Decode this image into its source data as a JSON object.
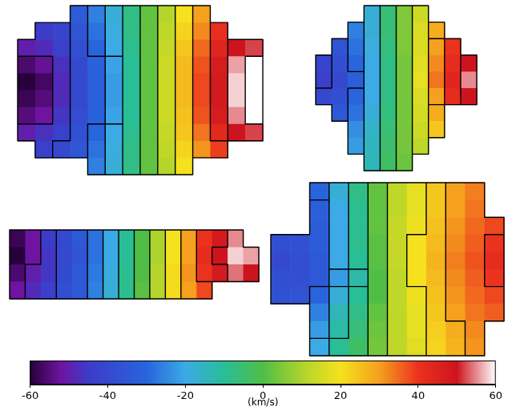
{
  "chart_data": [
    {
      "type": "heatmap",
      "tick_labels": false,
      "cells": [
        [
          null,
          null,
          null,
          -33,
          -26,
          -18,
          -8,
          2,
          11,
          20,
          30,
          null,
          null,
          null
        ],
        [
          null,
          -45,
          -42,
          -36,
          -28,
          -19,
          -8,
          2,
          12,
          22,
          32,
          41,
          null,
          null
        ],
        [
          -50,
          -48,
          -44,
          -38,
          -30,
          -20,
          -9,
          2,
          13,
          24,
          35,
          44,
          50,
          52
        ],
        [
          -56,
          -53,
          -47,
          -40,
          -31,
          -21,
          -10,
          2,
          14,
          26,
          37,
          47,
          56,
          60
        ],
        [
          -60,
          -57,
          -48,
          -40,
          -32,
          -22,
          -10,
          2,
          14,
          26,
          38,
          48,
          58,
          60
        ],
        [
          -58,
          -55,
          -48,
          -40,
          -32,
          -22,
          -10,
          2,
          14,
          26,
          38,
          48,
          58,
          60
        ],
        [
          -55,
          -52,
          -46,
          -39,
          -31,
          -21,
          -10,
          2,
          14,
          25,
          37,
          47,
          55,
          60
        ],
        [
          -50,
          -47,
          -43,
          -37,
          -30,
          -20,
          -9,
          2,
          13,
          24,
          34,
          43,
          50,
          52
        ],
        [
          null,
          -43,
          -40,
          -35,
          -28,
          -19,
          -8,
          2,
          12,
          22,
          31,
          39,
          null,
          null
        ],
        [
          null,
          null,
          null,
          null,
          -26,
          -18,
          -8,
          2,
          11,
          20,
          null,
          null,
          null,
          null
        ]
      ]
    },
    {
      "type": "heatmap",
      "tick_labels": false,
      "cells": [
        [
          null,
          null,
          null,
          -18,
          -6,
          5,
          14,
          null,
          null,
          null
        ],
        [
          null,
          null,
          -26,
          -18,
          -6,
          5,
          16,
          28,
          null,
          null
        ],
        [
          null,
          -36,
          -28,
          -19,
          -7,
          5,
          16,
          30,
          40,
          null
        ],
        [
          -42,
          -38,
          -30,
          -20,
          -8,
          4,
          17,
          32,
          42,
          50
        ],
        [
          -44,
          -40,
          -32,
          -20,
          -8,
          4,
          18,
          34,
          44,
          55
        ],
        [
          -40,
          -38,
          -30,
          -20,
          -8,
          4,
          16,
          30,
          42,
          50
        ],
        [
          null,
          -34,
          -28,
          -18,
          -7,
          4,
          15,
          28,
          null,
          null
        ],
        [
          null,
          null,
          -24,
          -16,
          -6,
          4,
          14,
          24,
          null,
          null
        ],
        [
          null,
          null,
          -22,
          -15,
          -5,
          4,
          12,
          null,
          null,
          null
        ],
        [
          null,
          null,
          null,
          -14,
          -4,
          3,
          null,
          null,
          null,
          null
        ]
      ]
    },
    {
      "type": "heatmap",
      "tick_labels": false,
      "cells": [
        [
          -58,
          -52,
          -45,
          -40,
          -34,
          -28,
          -20,
          -10,
          0,
          10,
          20,
          30,
          40,
          48,
          55,
          null
        ],
        [
          -60,
          -52,
          -46,
          -40,
          -36,
          -28,
          -20,
          -10,
          0,
          10,
          20,
          30,
          42,
          50,
          58,
          56
        ],
        [
          -56,
          -50,
          -46,
          -40,
          -34,
          -27,
          -19,
          -9,
          0,
          11,
          21,
          31,
          40,
          48,
          54,
          50
        ],
        [
          -52,
          -48,
          -44,
          -38,
          -34,
          -26,
          -18,
          -9,
          1,
          11,
          21,
          30,
          38,
          null,
          null,
          null
        ]
      ]
    },
    {
      "type": "heatmap",
      "tick_labels": false,
      "cells": [
        [
          null,
          null,
          -30,
          -18,
          -8,
          2,
          12,
          18,
          24,
          30,
          33,
          null
        ],
        [
          null,
          null,
          -32,
          -20,
          -9,
          2,
          12,
          18,
          24,
          30,
          34,
          null
        ],
        [
          null,
          null,
          -33,
          -20,
          -9,
          2,
          13,
          19,
          25,
          31,
          35,
          38
        ],
        [
          -38,
          -37,
          -33,
          -20,
          -9,
          1,
          13,
          20,
          26,
          32,
          36,
          40
        ],
        [
          -40,
          -38,
          -34,
          -20,
          -10,
          1,
          13,
          20,
          27,
          33,
          37,
          42
        ],
        [
          -38,
          -38,
          -34,
          -22,
          -12,
          0,
          12,
          20,
          26,
          32,
          36,
          40
        ],
        [
          -37,
          -36,
          -30,
          -18,
          -10,
          0,
          12,
          19,
          25,
          31,
          35,
          38
        ],
        [
          null,
          null,
          -26,
          -14,
          -8,
          2,
          12,
          18,
          24,
          30,
          34,
          36
        ],
        [
          null,
          null,
          -22,
          -12,
          -6,
          3,
          12,
          18,
          23,
          28,
          32,
          null
        ],
        [
          null,
          null,
          -20,
          -10,
          -4,
          4,
          12,
          17,
          22,
          27,
          31,
          null
        ]
      ]
    }
  ],
  "colorbar": {
    "range": [
      -60,
      60
    ],
    "ticks": [
      -60,
      -40,
      -20,
      0,
      20,
      40,
      60
    ],
    "label": "(km/s)"
  }
}
